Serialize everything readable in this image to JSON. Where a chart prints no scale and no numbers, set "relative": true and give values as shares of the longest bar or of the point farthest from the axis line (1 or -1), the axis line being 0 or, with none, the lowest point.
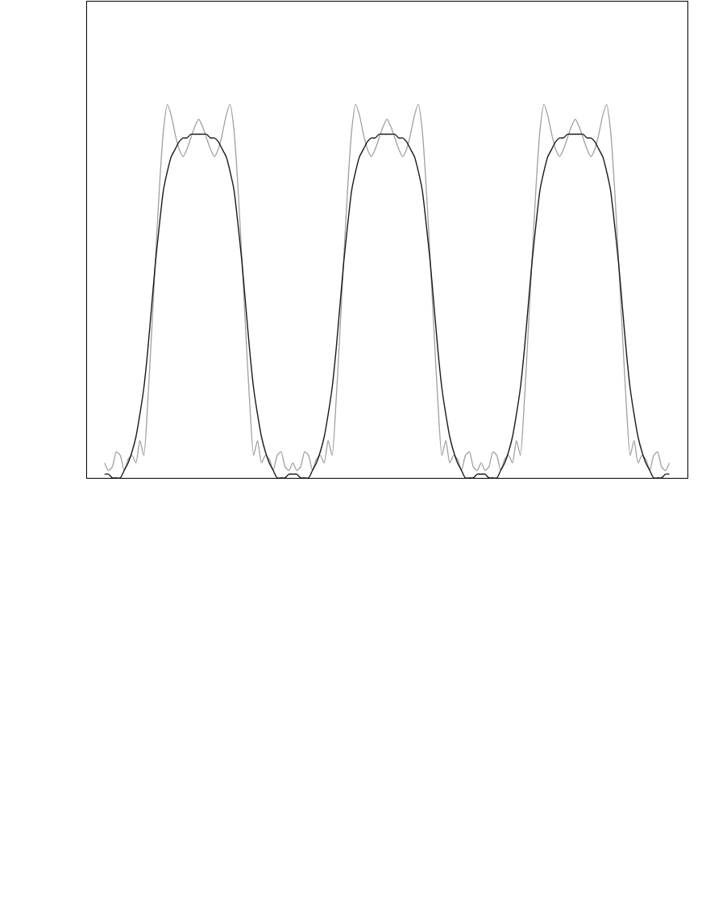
{
  "chart_data": {
    "type": "line",
    "relative": true,
    "categories": [
      null,
      null,
      null,
      null,
      null,
      null,
      null,
      null,
      null,
      null,
      null,
      null,
      null,
      null,
      null,
      null,
      null,
      null,
      null,
      null,
      null,
      null,
      null,
      null,
      null,
      null,
      null,
      null,
      null,
      null,
      null,
      null,
      null,
      null,
      null,
      null,
      null,
      null,
      null,
      null,
      null,
      null,
      null,
      null,
      null,
      null,
      null,
      null,
      null,
      null,
      null,
      null,
      null,
      null,
      null,
      null,
      null,
      null,
      null,
      null,
      null,
      null,
      null,
      null,
      null,
      null,
      null,
      null,
      null,
      null,
      null,
      null,
      null,
      null,
      null,
      null,
      null,
      null,
      null,
      null,
      null,
      null,
      null,
      null,
      null,
      null,
      null,
      null,
      null,
      null,
      null,
      null,
      null,
      null,
      null,
      null,
      null,
      null,
      null,
      null,
      null,
      null,
      null,
      null,
      null,
      null,
      null,
      null,
      null,
      null,
      null,
      null,
      null,
      null,
      null,
      null,
      null,
      null,
      null,
      null,
      null,
      null,
      null,
      null,
      null,
      null,
      null,
      null,
      null,
      null,
      null,
      null,
      null,
      null,
      null,
      null,
      null,
      null,
      null,
      null,
      null,
      null,
      null,
      null,
      null
    ],
    "series": [
      {
        "color": "#a0a0a0",
        "values": [
          0.04,
          0.02,
          0.03,
          0.07,
          0.06,
          0.02,
          0.05,
          0.06,
          0.04,
          0.1,
          0.06,
          0.2,
          0.39,
          0.59,
          0.78,
          0.93,
          1.0,
          0.97,
          0.92,
          0.88,
          0.86,
          0.88,
          0.91,
          0.94,
          0.96,
          0.94,
          0.91,
          0.88,
          0.86,
          0.88,
          0.92,
          0.97,
          1.0,
          0.93,
          0.78,
          0.59,
          0.39,
          0.2,
          0.06,
          0.1,
          0.04,
          0.06,
          0.05,
          0.02,
          0.06,
          0.07,
          0.03,
          0.02,
          0.04,
          0.02,
          0.03,
          0.07,
          0.06,
          0.02,
          0.05,
          0.06,
          0.04,
          0.1,
          0.06,
          0.2,
          0.39,
          0.59,
          0.78,
          0.93,
          1.0,
          0.97,
          0.92,
          0.88,
          0.86,
          0.88,
          0.91,
          0.94,
          0.96,
          0.94,
          0.91,
          0.88,
          0.86,
          0.88,
          0.92,
          0.97,
          1.0,
          0.93,
          0.78,
          0.59,
          0.39,
          0.2,
          0.06,
          0.1,
          0.04,
          0.06,
          0.05,
          0.02,
          0.06,
          0.07,
          0.03,
          0.02,
          0.04,
          0.02,
          0.03,
          0.07,
          0.06,
          0.02,
          0.05,
          0.06,
          0.04,
          0.1,
          0.06,
          0.2,
          0.39,
          0.59,
          0.78,
          0.93,
          1.0,
          0.97,
          0.92,
          0.88,
          0.86,
          0.88,
          0.91,
          0.94,
          0.96,
          0.94,
          0.91,
          0.88,
          0.86,
          0.88,
          0.92,
          0.97,
          1.0,
          0.93,
          0.78,
          0.59,
          0.39,
          0.2,
          0.06,
          0.1,
          0.04,
          0.06,
          0.05,
          0.02,
          0.06,
          0.07,
          0.03,
          0.02,
          0.04
        ]
      },
      {
        "color": "#1a1a1a",
        "values": [
          0.01,
          0.01,
          0.0,
          0.0,
          0.0,
          0.02,
          0.04,
          0.07,
          0.11,
          0.17,
          0.24,
          0.34,
          0.46,
          0.58,
          0.68,
          0.77,
          0.82,
          0.86,
          0.88,
          0.9,
          0.91,
          0.91,
          0.92,
          0.92,
          0.92,
          0.92,
          0.92,
          0.91,
          0.91,
          0.9,
          0.88,
          0.86,
          0.82,
          0.77,
          0.68,
          0.58,
          0.46,
          0.34,
          0.24,
          0.17,
          0.11,
          0.07,
          0.04,
          0.02,
          0.0,
          0.0,
          0.0,
          0.01,
          0.01,
          0.01,
          0.0,
          0.0,
          0.0,
          0.02,
          0.04,
          0.07,
          0.11,
          0.17,
          0.24,
          0.34,
          0.46,
          0.58,
          0.68,
          0.77,
          0.82,
          0.86,
          0.88,
          0.9,
          0.91,
          0.91,
          0.92,
          0.92,
          0.92,
          0.92,
          0.92,
          0.91,
          0.91,
          0.9,
          0.88,
          0.86,
          0.82,
          0.77,
          0.68,
          0.58,
          0.46,
          0.34,
          0.24,
          0.17,
          0.11,
          0.07,
          0.04,
          0.02,
          0.0,
          0.0,
          0.0,
          0.01,
          0.01,
          0.01,
          0.0,
          0.0,
          0.0,
          0.02,
          0.04,
          0.07,
          0.11,
          0.17,
          0.24,
          0.34,
          0.46,
          0.58,
          0.68,
          0.77,
          0.82,
          0.86,
          0.88,
          0.9,
          0.91,
          0.91,
          0.92,
          0.92,
          0.92,
          0.92,
          0.92,
          0.91,
          0.91,
          0.9,
          0.88,
          0.86,
          0.82,
          0.77,
          0.68,
          0.58,
          0.46,
          0.34,
          0.24,
          0.17,
          0.11,
          0.07,
          0.04,
          0.02,
          0.0,
          0.0,
          0.0,
          0.01,
          0.01
        ]
      }
    ]
  }
}
